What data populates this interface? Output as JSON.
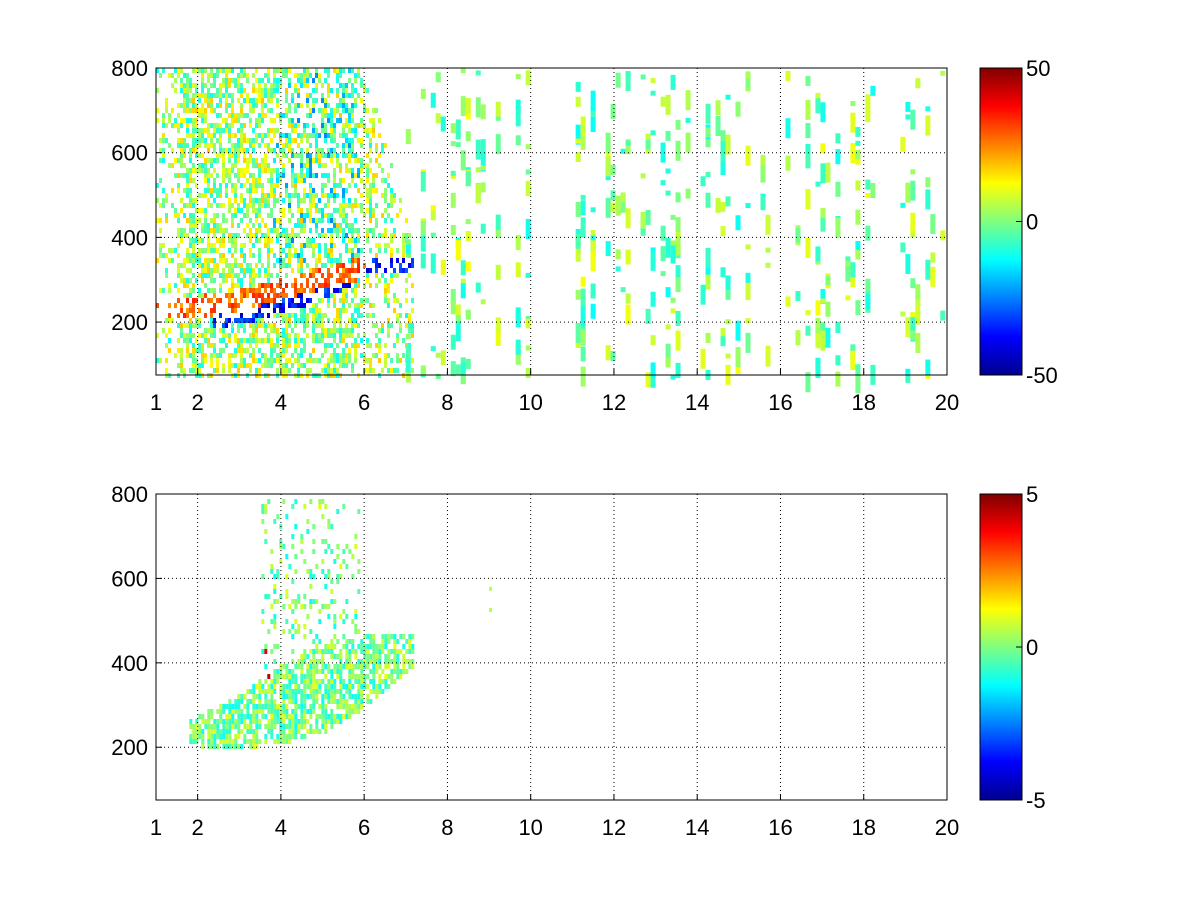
{
  "chart_data": [
    {
      "type": "heatmap",
      "title": "",
      "xlabel": "",
      "ylabel": "",
      "xlim": [
        1,
        20
      ],
      "ylim": [
        75,
        800
      ],
      "x_ticks": [
        1,
        2,
        4,
        6,
        8,
        10,
        12,
        14,
        16,
        18,
        20
      ],
      "x_tick_labels": [
        "1",
        "2",
        "4",
        "6",
        "8",
        "10",
        "12",
        "14",
        "16",
        "18",
        "20"
      ],
      "y_ticks": [
        200,
        400,
        600,
        800
      ],
      "y_tick_labels": [
        "200",
        "400",
        "600",
        "800"
      ],
      "grid": true,
      "colormap": "jet",
      "colorbar": {
        "min": -50,
        "max": 50,
        "ticks": [
          50,
          0,
          -50
        ],
        "tick_labels": [
          "50",
          "0",
          "-50"
        ]
      },
      "features": {
        "dense_region_x": [
          1,
          7.2
        ],
        "ridge_positive": {
          "x": [
            1.8,
            3.0,
            4.0,
            5.0,
            5.8
          ],
          "y": [
            240,
            255,
            285,
            310,
            330
          ],
          "value": 35
        },
        "ridge_negative": {
          "x": [
            2.5,
            3.5,
            4.5,
            5.5,
            6.0
          ],
          "y": [
            215,
            235,
            265,
            305,
            340
          ],
          "value": -45
        },
        "sparse_region_x": [
          7,
          20
        ],
        "sparse_value_range": [
          -12,
          12
        ]
      }
    },
    {
      "type": "heatmap",
      "title": "",
      "xlabel": "",
      "ylabel": "",
      "xlim": [
        1,
        20
      ],
      "ylim": [
        75,
        800
      ],
      "x_ticks": [
        1,
        2,
        4,
        6,
        8,
        10,
        12,
        14,
        16,
        18,
        20
      ],
      "x_tick_labels": [
        "1",
        "2",
        "4",
        "6",
        "8",
        "10",
        "12",
        "14",
        "16",
        "18",
        "20"
      ],
      "y_ticks": [
        200,
        400,
        600,
        800
      ],
      "y_tick_labels": [
        "200",
        "400",
        "600",
        "800"
      ],
      "grid": true,
      "colormap": "jet",
      "colorbar": {
        "min": -5,
        "max": 5,
        "ticks": [
          5,
          0,
          -5
        ],
        "tick_labels": [
          "5",
          "0",
          "-5"
        ]
      },
      "features": {
        "dense_region_x": [
          1.8,
          7.2
        ],
        "band_lower_edge": {
          "x": [
            1.8,
            3,
            4,
            5,
            6,
            7.2
          ],
          "y": [
            210,
            200,
            215,
            240,
            300,
            400
          ]
        },
        "band_upper_edge": {
          "x": [
            1.8,
            3,
            4,
            5,
            6,
            7.2
          ],
          "y": [
            270,
            330,
            400,
            450,
            470,
            480
          ]
        },
        "hot_cluster": {
          "x": [
            2.7,
            3.8
          ],
          "y": [
            370,
            480
          ],
          "value": 4.5
        },
        "isolated_points": [
          {
            "x": 9.0,
            "y": 530
          },
          {
            "x": 9.0,
            "y": 580
          }
        ]
      }
    }
  ]
}
